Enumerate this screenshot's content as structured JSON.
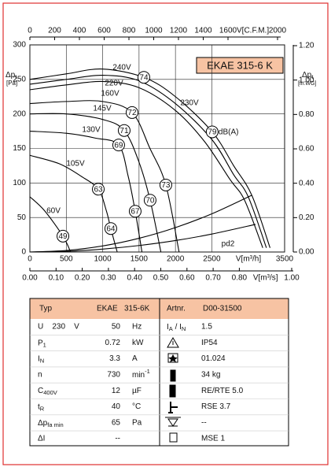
{
  "chart_data": {
    "type": "line",
    "title": "EKAE 315-6 K",
    "ylabel": [
      "Δp",
      {
        "sub": "t"
      }
    ],
    "yunit": "[Pa]",
    "y2label": [
      "Δp",
      {
        "sub": "t"
      }
    ],
    "y2unit": "[in.WG]",
    "xlabel": "V[m³/h]",
    "x2label": "V[m³/s]",
    "x3label": "V[C.F.M.]",
    "xlim": [
      0,
      3500
    ],
    "xticks": [
      0,
      500,
      1000,
      1500,
      2000,
      2500,
      3500
    ],
    "ylim": [
      0,
      300
    ],
    "yticks": [
      0,
      50,
      100,
      150,
      200,
      250,
      300
    ],
    "y2lim": [
      0,
      1.2
    ],
    "y2ticks": [
      {
        "value": 0,
        "label": "0.00"
      },
      {
        "value": 0.2,
        "label": "0.20"
      },
      {
        "value": 0.4,
        "label": "0.40"
      },
      {
        "value": 0.6,
        "label": "0.60"
      },
      {
        "value": 0.8,
        "label": "0.80"
      },
      {
        "value": 1.0,
        "label": "1.00"
      },
      {
        "value": 1.2,
        "label": "1.20"
      }
    ],
    "x2lim": [
      0,
      1
    ],
    "x2ticks": [
      {
        "value": 0,
        "label": "0.00"
      },
      {
        "value": 0.1,
        "label": "0.10"
      },
      {
        "value": 0.2,
        "label": "0.20"
      },
      {
        "value": 0.3,
        "label": "0.30"
      },
      {
        "value": 0.4,
        "label": "0.40"
      },
      {
        "value": 0.5,
        "label": "0.50"
      },
      {
        "value": 0.6,
        "label": "0.60"
      },
      {
        "value": 0.7,
        "label": "0.70"
      },
      {
        "value": 0.8,
        "label": "0.80"
      },
      {
        "value": 1.0,
        "label": "1.00"
      }
    ],
    "x3lim": [
      0,
      2000
    ],
    "x3ticks": [
      0,
      200,
      400,
      600,
      800,
      1000,
      1200,
      1400,
      1600,
      2000
    ],
    "grid": true,
    "series": [
      {
        "name": "240V",
        "color": "#000000",
        "x": [
          0,
          500,
          1000,
          1566,
          2000,
          2505,
          2800,
          3050,
          3300
        ],
        "values": [
          250,
          258,
          265,
          253,
          225,
          174,
          125,
          82,
          6
        ]
      },
      {
        "name": "230V",
        "color": "#000000",
        "x": [
          0,
          500,
          1000,
          1500,
          2000,
          2500,
          2800,
          3000,
          3250
        ],
        "values": [
          243,
          250,
          256,
          248,
          215,
          163,
          112,
          80,
          6
        ]
      },
      {
        "name": "220V",
        "color": "#000000",
        "x": [
          0,
          500,
          1000,
          1500,
          2000,
          2400,
          2750,
          2950,
          3200
        ],
        "values": [
          235,
          242,
          247,
          238,
          205,
          160,
          105,
          75,
          6
        ]
      },
      {
        "name": "160V",
        "color": "#000000",
        "x": [
          0,
          500,
          1000,
          1404,
          1650,
          1868,
          2050
        ],
        "values": [
          215,
          218,
          218,
          202,
          150,
          97,
          0
        ]
      },
      {
        "name": "145V",
        "color": "#000000",
        "x": [
          0,
          500,
          1000,
          1296,
          1500,
          1652,
          1800
        ],
        "values": [
          200,
          200,
          192,
          176,
          130,
          75,
          0
        ]
      },
      {
        "name": "130V",
        "color": "#000000",
        "x": [
          0,
          500,
          900,
          1220,
          1350,
          1447,
          1540
        ],
        "values": [
          175,
          172,
          165,
          155,
          110,
          59,
          0
        ]
      },
      {
        "name": "105V",
        "color": "#000000",
        "x": [
          0,
          400,
          700,
          940,
          1050,
          1112,
          1200
        ],
        "values": [
          140,
          128,
          110,
          91,
          60,
          34,
          0
        ]
      },
      {
        "name": "60V",
        "color": "#000000",
        "x": [
          0,
          200,
          454,
          560
        ],
        "values": [
          80,
          60,
          23,
          0
        ]
      },
      {
        "color": "#000000",
        "x": [
          0,
          500,
          1000,
          1500,
          2000,
          2500,
          3045
        ],
        "values": [
          0,
          2.2,
          8.8,
          19.9,
          35.4,
          55.3,
          82
        ]
      },
      {
        "name": "pd2",
        "color": "#000000",
        "x": [
          0,
          500,
          1000,
          1500,
          2000,
          2500,
          3100
        ],
        "values": [
          0,
          1.0,
          4.2,
          9.4,
          16.6,
          26,
          40
        ]
      }
    ],
    "annotations": [
      {
        "text": "74",
        "x": 1566,
        "y": 253
      },
      {
        "text": "72",
        "x": 1404,
        "y": 202
      },
      {
        "text": "71",
        "x": 1296,
        "y": 176
      },
      {
        "text": "69",
        "x": 1220,
        "y": 155
      },
      {
        "text": "63",
        "x": 940,
        "y": 91
      },
      {
        "text": "49",
        "x": 454,
        "y": 23
      },
      {
        "text": "79",
        "suffix": "dB(A)",
        "x": 2505,
        "y": 174
      },
      {
        "text": "73",
        "x": 1868,
        "y": 97
      },
      {
        "text": "70",
        "x": 1652,
        "y": 75
      },
      {
        "text": "67",
        "x": 1447,
        "y": 59
      },
      {
        "text": "64",
        "x": 1112,
        "y": 34
      }
    ]
  },
  "table": {
    "header": [
      "Typ",
      "EKAE",
      "315-6K",
      "Artnr.",
      "D00-31500"
    ],
    "rows": [
      [
        "U    230    V",
        "50",
        "Hz",
        [
          "I",
          {
            "sub": "A"
          },
          " / I",
          {
            "sub": "N"
          }
        ],
        "1.5"
      ],
      [
        [
          "P",
          {
            "sub": "1"
          }
        ],
        "0.72",
        "kW",
        null,
        "IP54"
      ],
      [
        [
          "I",
          {
            "sub": "N"
          }
        ],
        "3.3",
        "A",
        null,
        "01.024"
      ],
      [
        "n",
        "730",
        [
          "min",
          {
            "sup": "-1"
          }
        ],
        null,
        "34 kg"
      ],
      [
        [
          "C",
          {
            "sub": "400V"
          }
        ],
        "12",
        "µF",
        null,
        "RE/RTE 5.0"
      ],
      [
        [
          "t",
          {
            "sub": "R"
          }
        ],
        "40",
        "°C",
        null,
        "RSE 3.7"
      ],
      [
        [
          "Δp",
          {
            "sub": "fa min"
          }
        ],
        "65",
        "Pa",
        null,
        "--"
      ],
      [
        "ΔI",
        "--",
        null,
        null,
        "MSE 1"
      ]
    ]
  }
}
